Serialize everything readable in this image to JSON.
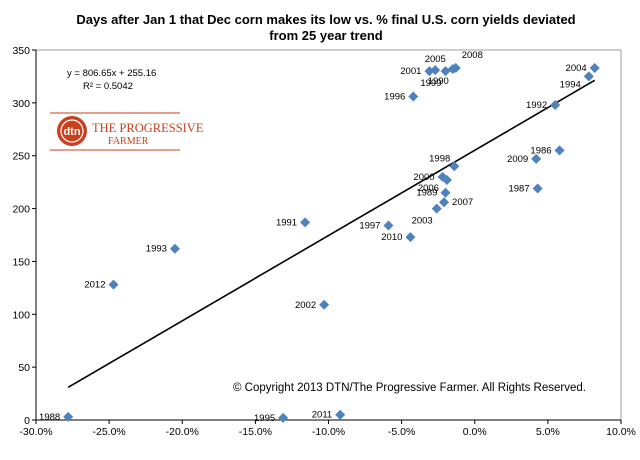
{
  "chart_data": {
    "type": "scatter",
    "title_line1": "Days after Jan 1 that Dec corn makes its low vs. % final U.S. corn yields deviated",
    "title_line2": "from 25 year trend",
    "xlabel": "",
    "ylabel": "",
    "xlim": [
      -0.3,
      0.1
    ],
    "ylim": [
      0,
      350
    ],
    "x_ticks": [
      -0.3,
      -0.25,
      -0.2,
      -0.15,
      -0.1,
      -0.05,
      0.0,
      0.05,
      0.1
    ],
    "x_tick_labels": [
      "-30.0%",
      "-25.0%",
      "-20.0%",
      "-15.0%",
      "-10.0%",
      "-5.0%",
      "0.0%",
      "5.0%",
      "10.0%"
    ],
    "y_ticks": [
      0,
      50,
      100,
      150,
      200,
      250,
      300,
      350
    ],
    "y_tick_labels": [
      "0",
      "50",
      "100",
      "150",
      "200",
      "250",
      "300",
      "350"
    ],
    "grid": false,
    "marker_color": "#4f81bd",
    "trendline": {
      "slope": 806.65,
      "intercept": 255.16,
      "x_range": [
        -0.278,
        0.082
      ],
      "equation": "y = 806.65x + 255.16",
      "r_squared": "R² = 0.5042",
      "color": "#000000"
    },
    "points": [
      {
        "label": "2001",
        "x": -0.031,
        "y": 330,
        "label_pos": "left"
      },
      {
        "label": "2005",
        "x": -0.027,
        "y": 331,
        "label_pos": "above"
      },
      {
        "label": "1999",
        "x": -0.02,
        "y": 330,
        "label_pos": "below-left"
      },
      {
        "label": "1990",
        "x": -0.015,
        "y": 332,
        "label_pos": "below-left"
      },
      {
        "label": "2008",
        "x": -0.013,
        "y": 333,
        "label_pos": "above-right"
      },
      {
        "label": "1996",
        "x": -0.042,
        "y": 306,
        "label_pos": "left"
      },
      {
        "label": "2004",
        "x": 0.082,
        "y": 333,
        "label_pos": "left"
      },
      {
        "label": "1994",
        "x": 0.078,
        "y": 325,
        "label_pos": "left-below"
      },
      {
        "label": "1992",
        "x": 0.055,
        "y": 298,
        "label_pos": "left"
      },
      {
        "label": "1986",
        "x": 0.058,
        "y": 255,
        "label_pos": "left"
      },
      {
        "label": "2009",
        "x": 0.042,
        "y": 247,
        "label_pos": "left"
      },
      {
        "label": "1987",
        "x": 0.043,
        "y": 219,
        "label_pos": "left"
      },
      {
        "label": "1998",
        "x": -0.014,
        "y": 240,
        "label_pos": "above-left"
      },
      {
        "label": "2000",
        "x": -0.022,
        "y": 230,
        "label_pos": "left"
      },
      {
        "label": "2006",
        "x": -0.019,
        "y": 227,
        "label_pos": "left-below"
      },
      {
        "label": "1989",
        "x": -0.02,
        "y": 215,
        "label_pos": "left"
      },
      {
        "label": "2007",
        "x": -0.021,
        "y": 206,
        "label_pos": "right"
      },
      {
        "label": "2003",
        "x": -0.026,
        "y": 200,
        "label_pos": "below-left"
      },
      {
        "label": "1997",
        "x": -0.059,
        "y": 184,
        "label_pos": "left"
      },
      {
        "label": "2010",
        "x": -0.044,
        "y": 173,
        "label_pos": "left"
      },
      {
        "label": "1991",
        "x": -0.116,
        "y": 187,
        "label_pos": "left"
      },
      {
        "label": "1993",
        "x": -0.205,
        "y": 162,
        "label_pos": "left"
      },
      {
        "label": "2012",
        "x": -0.247,
        "y": 128,
        "label_pos": "left"
      },
      {
        "label": "2002",
        "x": -0.103,
        "y": 109,
        "label_pos": "left"
      },
      {
        "label": "1988",
        "x": -0.278,
        "y": 3,
        "label_pos": "left"
      },
      {
        "label": "1995",
        "x": -0.131,
        "y": 2,
        "label_pos": "left"
      },
      {
        "label": "2011",
        "x": -0.092,
        "y": 5,
        "label_pos": "left"
      }
    ]
  },
  "logo": {
    "badge": "dtn",
    "line1": "THE PROGRESSIVE",
    "line2": "FARMER",
    "color": "#c8401e"
  },
  "copyright": "© Copyright 2013 DTN/The Progressive Farmer. All Rights Reserved."
}
